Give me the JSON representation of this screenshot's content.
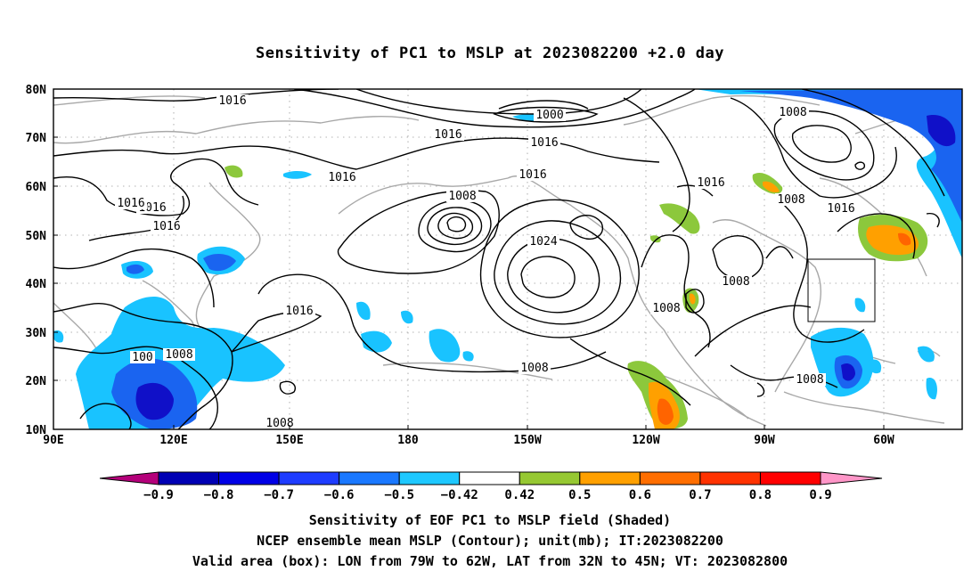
{
  "title": "Sensitivity of PC1 to MSLP at 2023082200 +2.0 day",
  "map": {
    "lon_labels": [
      "90E",
      "120E",
      "150E",
      "180",
      "150W",
      "120W",
      "90W",
      "60W"
    ],
    "lat_labels": [
      "80N",
      "70N",
      "60N",
      "50N",
      "40N",
      "30N",
      "20N",
      "10N"
    ],
    "contour_labels": [
      {
        "text": "1016"
      },
      {
        "text": "1000"
      },
      {
        "text": "1008"
      },
      {
        "text": "1016"
      },
      {
        "text": "1016"
      },
      {
        "text": "1016"
      },
      {
        "text": "1016"
      },
      {
        "text": "1016"
      },
      {
        "text": "1016"
      },
      {
        "text": "1008"
      },
      {
        "text": "1016"
      },
      {
        "text": "1024"
      },
      {
        "text": "1008"
      },
      {
        "text": "1016"
      },
      {
        "text": "1008"
      },
      {
        "text": "1008"
      },
      {
        "text": "1016"
      },
      {
        "text": "1008"
      },
      {
        "text": "1008"
      },
      {
        "text": "1008"
      },
      {
        "text": "1008"
      },
      {
        "text": "100"
      },
      {
        "text": "1016"
      }
    ],
    "valid_box": {
      "lon_from": "79W",
      "lon_to": "62W",
      "lat_from": "32N",
      "lat_to": "45N"
    },
    "colors": {
      "neg_dark": "#1010c8",
      "neg_mid": "#1a64f0",
      "neg_light": "#19c3ff",
      "pos_green": "#8cc83c",
      "pos_orange": "#ffa000",
      "pos_deep": "#ff6400"
    }
  },
  "colorbar": {
    "ticks": [
      "-0.9",
      "-0.8",
      "-0.7",
      "-0.6",
      "-0.5",
      "-0.42",
      "0.42",
      "0.5",
      "0.6",
      "0.7",
      "0.8",
      "0.9"
    ],
    "colors": [
      "#b4007a",
      "#0000b4",
      "#0000e6",
      "#1e3cff",
      "#1a78ff",
      "#1ec8ff",
      "#ffffff",
      "#96c832",
      "#ffa000",
      "#ff6e00",
      "#ff3200",
      "#ff0000",
      "#ff96c8"
    ]
  },
  "captions": {
    "line1": "Sensitivity of EOF PC1 to MSLP field (Shaded)",
    "line2": "NCEP ensemble mean MSLP (Contour); unit(mb); IT:2023082200",
    "line3": "Valid area (box): LON from 79W to 62W, LAT from 32N to 45N; VT: 2023082800"
  }
}
